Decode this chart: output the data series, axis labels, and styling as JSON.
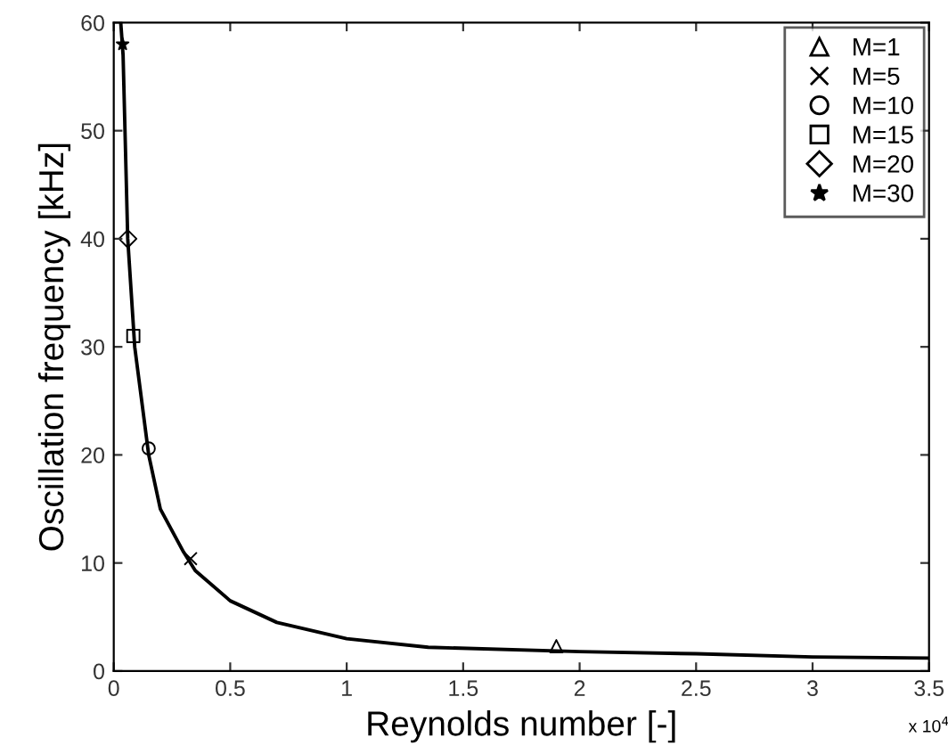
{
  "chart_data": {
    "type": "scatter",
    "xlabel": "Reynolds number [-]",
    "ylabel": "Oscillation frequency [kHz]",
    "xlim": [
      0,
      3.5
    ],
    "ylim": [
      0,
      60
    ],
    "xticks": [
      0,
      0.5,
      1,
      1.5,
      2,
      2.5,
      3,
      3.5
    ],
    "yticks": [
      0,
      10,
      20,
      30,
      40,
      50,
      60
    ],
    "annotations": [
      "x 10$^{4}$"
    ],
    "legend": "top right",
    "grid": false,
    "series": [
      {
        "name": "M=1",
        "marker": "triangle",
        "color": "#000000",
        "x": [
          1.9
        ],
        "values": [
          2.3
        ]
      },
      {
        "name": "M=5",
        "marker": "cross",
        "color": "#000000",
        "x": [
          0.33
        ],
        "values": [
          10.4
        ]
      },
      {
        "name": "M=10",
        "marker": "circle",
        "color": "#000000",
        "x": [
          0.15
        ],
        "values": [
          20.6
        ]
      },
      {
        "name": "M=15",
        "marker": "square",
        "color": "#000000",
        "x": [
          0.084
        ],
        "values": [
          31
        ]
      },
      {
        "name": "M=20",
        "marker": "diamond",
        "color": "#000000",
        "x": [
          0.06
        ],
        "values": [
          40
        ]
      },
      {
        "name": "M=30",
        "marker": "star",
        "color": "#000000",
        "x": [
          0.038
        ],
        "values": [
          58
        ]
      },
      {
        "type": "line",
        "marker": "none",
        "line_style": "solid",
        "color": "#000000",
        "x": [
          0.03,
          0.04,
          0.06,
          0.09,
          0.15,
          0.2,
          0.3,
          0.35,
          0.5,
          0.7,
          1.0,
          1.35,
          2.0,
          2.5,
          3.0,
          3.5
        ],
        "values": [
          60,
          57,
          40,
          30,
          20,
          15,
          11,
          9.3,
          6.5,
          4.5,
          3,
          2.2,
          1.8,
          1.6,
          1.3,
          1.2
        ]
      }
    ]
  }
}
